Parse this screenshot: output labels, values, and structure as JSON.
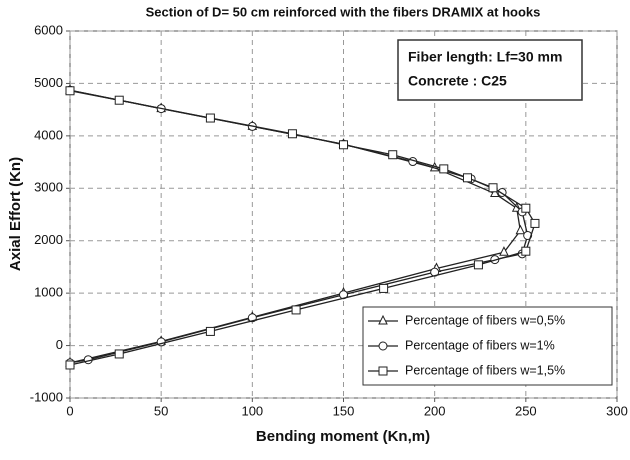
{
  "chart_data": {
    "type": "line",
    "title": "Section of D= 50 cm reinforced with the fibers DRAMIX at hooks",
    "xlabel": "Bending moment (Kn,m)",
    "ylabel": "Axial Effort (Kn)",
    "annotation": [
      "Fiber length: Lf=30 mm",
      "Concrete : C25"
    ],
    "xlim": [
      0,
      300
    ],
    "xticks": [
      0,
      50,
      100,
      150,
      200,
      250,
      300
    ],
    "ylim": [
      -1000,
      6000
    ],
    "yticks": [
      -1000,
      0,
      1000,
      2000,
      3000,
      4000,
      5000,
      6000
    ],
    "grid": true,
    "legend": "lower right",
    "series": [
      {
        "name": "Percentage of fibers w=0,5%",
        "color": "#222222",
        "marker": "triangle",
        "x": [
          0,
          50,
          100,
          150,
          200,
          233,
          245,
          247,
          238,
          201,
          150,
          100,
          50,
          0
        ],
        "values": [
          4870,
          4520,
          4180,
          3840,
          3390,
          2900,
          2620,
          2190,
          1780,
          1470,
          1000,
          540,
          80,
          -330
        ]
      },
      {
        "name": "Percentage of fibers w=1%",
        "color": "#222222",
        "marker": "circle",
        "x": [
          0,
          50,
          100,
          150,
          188,
          220,
          237,
          248,
          251,
          248,
          233,
          200,
          150,
          100,
          50,
          10,
          0
        ],
        "values": [
          4870,
          4520,
          4180,
          3840,
          3510,
          3180,
          2920,
          2550,
          2100,
          1750,
          1640,
          1400,
          970,
          530,
          70,
          -270,
          -330
        ]
      },
      {
        "name": "Percentage of fibers w=1,5%",
        "color": "#222222",
        "marker": "square",
        "x": [
          0,
          27,
          77,
          122,
          150,
          177,
          205,
          218,
          232,
          250,
          255,
          250,
          224,
          172,
          124,
          77,
          27,
          0
        ],
        "values": [
          4860,
          4680,
          4340,
          4040,
          3830,
          3640,
          3370,
          3200,
          3010,
          2620,
          2330,
          1800,
          1540,
          1090,
          680,
          270,
          -160,
          -370
        ]
      }
    ]
  }
}
